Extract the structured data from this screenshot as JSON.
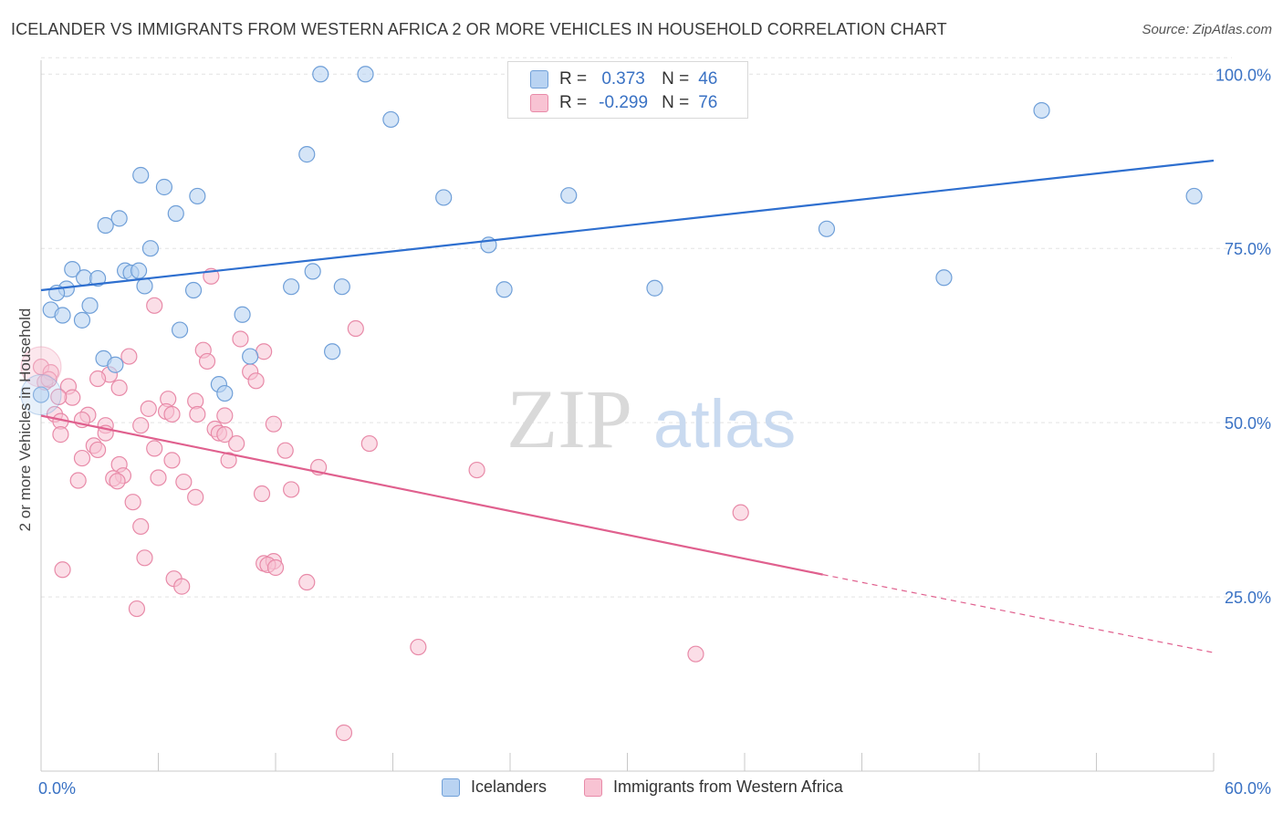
{
  "header": {
    "title": "ICELANDER VS IMMIGRANTS FROM WESTERN AFRICA 2 OR MORE VEHICLES IN HOUSEHOLD CORRELATION CHART",
    "source": "Source: ZipAtlas.com"
  },
  "stats": {
    "row1": {
      "r_label": "R =",
      "r_value": "0.373",
      "n_label": "N =",
      "n_value": "46"
    },
    "row2": {
      "r_label": "R =",
      "r_value": "-0.299",
      "n_label": "N =",
      "n_value": "76"
    }
  },
  "watermark": {
    "zip": "ZIP",
    "atlas": "atlas"
  },
  "colors": {
    "blue_fill": "#b9d3f2",
    "blue_stroke": "#6f9fd8",
    "blue_line": "#2e6fcf",
    "pink_fill": "#f8c3d3",
    "pink_stroke": "#e88aa8",
    "pink_line": "#e0608e",
    "tick_label": "#3a72c4",
    "grid": "#e3e3e3"
  },
  "chart_data": {
    "type": "scatter",
    "title": "ICELANDER VS IMMIGRANTS FROM WESTERN AFRICA 2 OR MORE VEHICLES IN HOUSEHOLD CORRELATION CHART",
    "xlabel": "",
    "ylabel": "2 or more Vehicles in Household",
    "xlim": [
      0,
      60
    ],
    "ylim": [
      0,
      102
    ],
    "x_tick_labels": [
      "0.0%",
      "60.0%"
    ],
    "y_ticks": [
      25,
      50,
      75,
      100
    ],
    "y_tick_labels": [
      "25.0%",
      "50.0%",
      "75.0%",
      "100.0%"
    ],
    "grid": true,
    "legend_position": "bottom",
    "series": [
      {
        "name": "Icelanders",
        "points": [
          [
            14.3,
            100
          ],
          [
            16.6,
            100
          ],
          [
            17.9,
            93.5
          ],
          [
            13.6,
            88.5
          ],
          [
            51.2,
            94.8
          ],
          [
            59.0,
            82.5
          ],
          [
            5.1,
            85.5
          ],
          [
            6.3,
            83.8
          ],
          [
            8.0,
            82.5
          ],
          [
            6.9,
            80
          ],
          [
            4.0,
            79.3
          ],
          [
            3.3,
            78.3
          ],
          [
            5.6,
            75
          ],
          [
            20.6,
            82.3
          ],
          [
            27.0,
            82.6
          ],
          [
            22.9,
            75.5
          ],
          [
            40.2,
            77.8
          ],
          [
            1.6,
            72
          ],
          [
            2.2,
            70.8
          ],
          [
            2.9,
            70.7
          ],
          [
            4.3,
            71.8
          ],
          [
            4.6,
            71.5
          ],
          [
            5.0,
            71.8
          ],
          [
            13.9,
            71.7
          ],
          [
            1.3,
            69.2
          ],
          [
            0.8,
            68.6
          ],
          [
            5.3,
            69.6
          ],
          [
            7.8,
            69
          ],
          [
            12.8,
            69.5
          ],
          [
            15.4,
            69.5
          ],
          [
            23.7,
            69.1
          ],
          [
            31.4,
            69.3
          ],
          [
            46.2,
            70.8
          ],
          [
            0.5,
            66.2
          ],
          [
            1.1,
            65.4
          ],
          [
            2.5,
            66.8
          ],
          [
            2.1,
            64.7
          ],
          [
            10.3,
            65.5
          ],
          [
            7.1,
            63.3
          ],
          [
            14.9,
            60.2
          ],
          [
            3.2,
            59.2
          ],
          [
            3.8,
            58.3
          ],
          [
            10.7,
            59.5
          ],
          [
            9.1,
            55.5
          ],
          [
            9.4,
            54.2
          ],
          [
            0.0,
            54.0
          ]
        ]
      },
      {
        "name": "Immigrants from Western Africa",
        "points": [
          [
            8.7,
            71
          ],
          [
            5.8,
            66.8
          ],
          [
            16.1,
            63.5
          ],
          [
            10.2,
            62
          ],
          [
            11.4,
            60.2
          ],
          [
            8.3,
            60.4
          ],
          [
            8.5,
            58.8
          ],
          [
            4.5,
            59.5
          ],
          [
            0.0,
            58
          ],
          [
            0.5,
            57.2
          ],
          [
            3.5,
            56.9
          ],
          [
            2.9,
            56.3
          ],
          [
            10.7,
            57.3
          ],
          [
            11.0,
            56.0
          ],
          [
            1.4,
            55.2
          ],
          [
            4.0,
            55
          ],
          [
            1.6,
            53.6
          ],
          [
            6.5,
            53.4
          ],
          [
            7.9,
            53.1
          ],
          [
            5.5,
            52
          ],
          [
            6.4,
            51.6
          ],
          [
            2.4,
            51.1
          ],
          [
            6.7,
            51.2
          ],
          [
            8.0,
            51.2
          ],
          [
            9.4,
            51.0
          ],
          [
            0.7,
            51.2
          ],
          [
            1.0,
            50.2
          ],
          [
            2.1,
            50.4
          ],
          [
            3.3,
            49.6
          ],
          [
            5.1,
            49.6
          ],
          [
            11.9,
            49.8
          ],
          [
            8.9,
            49.1
          ],
          [
            9.1,
            48.5
          ],
          [
            9.4,
            48.3
          ],
          [
            1.0,
            48.3
          ],
          [
            3.3,
            48.5
          ],
          [
            10.0,
            47
          ],
          [
            2.7,
            46.7
          ],
          [
            5.8,
            46.3
          ],
          [
            12.5,
            46
          ],
          [
            16.8,
            47
          ],
          [
            2.9,
            46.1
          ],
          [
            2.1,
            44.9
          ],
          [
            6.7,
            44.6
          ],
          [
            9.6,
            44.6
          ],
          [
            4.0,
            44.0
          ],
          [
            14.2,
            43.6
          ],
          [
            4.2,
            42.4
          ],
          [
            22.3,
            43.2
          ],
          [
            3.7,
            42.0
          ],
          [
            1.9,
            41.7
          ],
          [
            3.9,
            41.6
          ],
          [
            6.0,
            42.1
          ],
          [
            7.3,
            41.5
          ],
          [
            11.3,
            39.8
          ],
          [
            12.8,
            40.4
          ],
          [
            7.9,
            39.3
          ],
          [
            4.7,
            38.6
          ],
          [
            35.8,
            37.1
          ],
          [
            5.1,
            35.1
          ],
          [
            1.1,
            28.9
          ],
          [
            5.3,
            30.6
          ],
          [
            11.4,
            29.8
          ],
          [
            11.9,
            30.1
          ],
          [
            11.6,
            29.6
          ],
          [
            12.0,
            29.2
          ],
          [
            6.8,
            27.6
          ],
          [
            7.2,
            26.5
          ],
          [
            13.6,
            27.1
          ],
          [
            4.9,
            23.3
          ],
          [
            19.3,
            17.8
          ],
          [
            33.5,
            16.8
          ],
          [
            15.5,
            5.5
          ],
          [
            0.2,
            55.8
          ],
          [
            0.4,
            56.2
          ],
          [
            0.9,
            53.7
          ]
        ]
      }
    ],
    "trend_lines": [
      {
        "series": "Icelanders",
        "x": [
          0,
          60
        ],
        "y": [
          69.0,
          87.6
        ],
        "style": "solid"
      },
      {
        "series": "Immigrants from Western Africa",
        "x": [
          0,
          40,
          60
        ],
        "y": [
          51.0,
          28.2,
          17.0
        ],
        "style": "solid-then-dashed"
      }
    ]
  },
  "legend": {
    "item1": "Icelanders",
    "item2": "Immigrants from Western Africa"
  }
}
